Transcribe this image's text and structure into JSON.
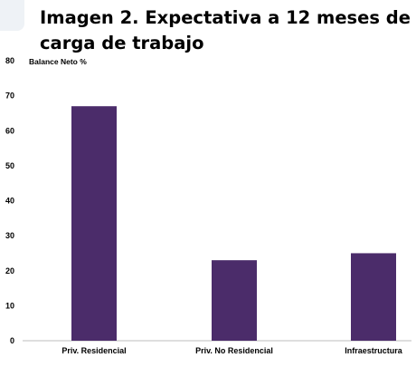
{
  "page": {
    "title": "Imagen 2. Expectativa a 12 meses de carga de trabajo"
  },
  "chart_data": {
    "type": "bar",
    "title": "Imagen 2. Expectativa a 12 meses de carga de trabajo",
    "ylabel": "Balance Neto %",
    "xlabel": "",
    "categories": [
      "Priv. Residencial",
      "Priv. No Residencial",
      "Infraestructura"
    ],
    "values": [
      67,
      23,
      25
    ],
    "ylim": [
      0,
      80
    ],
    "yticks": [
      0,
      10,
      20,
      30,
      40,
      50,
      60,
      70,
      80
    ],
    "grid": false,
    "legend": "none",
    "colors": {
      "bar": "#4b2c6a",
      "axis": "#d3d3d3"
    }
  }
}
